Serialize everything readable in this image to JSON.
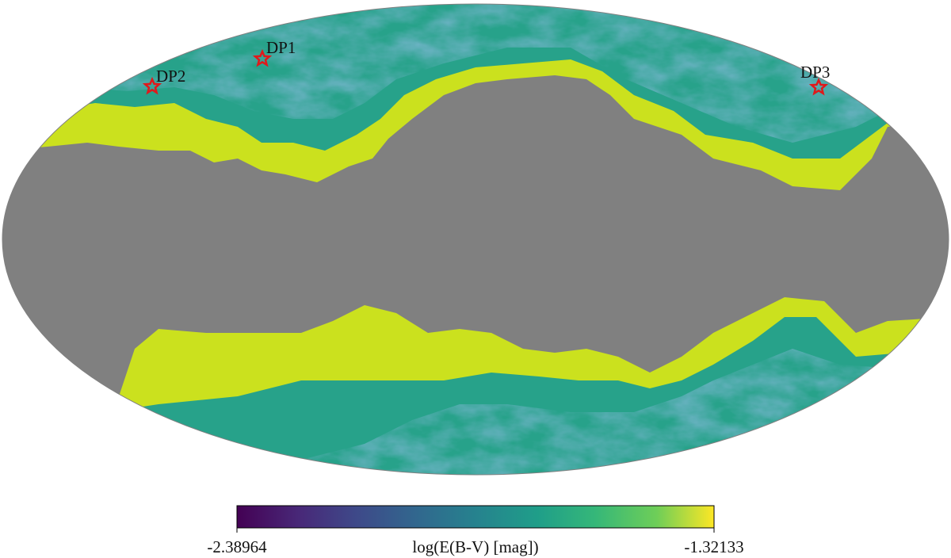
{
  "map": {
    "markers": [
      {
        "label": "DP1"
      },
      {
        "label": "DP2"
      },
      {
        "label": "DP3"
      }
    ],
    "colorbar": {
      "label": "log(E(B-V) [mag])",
      "clim": [
        -2.38964,
        -1.32133
      ],
      "ticks": [
        -2.38964,
        -1.32133
      ]
    }
  }
}
